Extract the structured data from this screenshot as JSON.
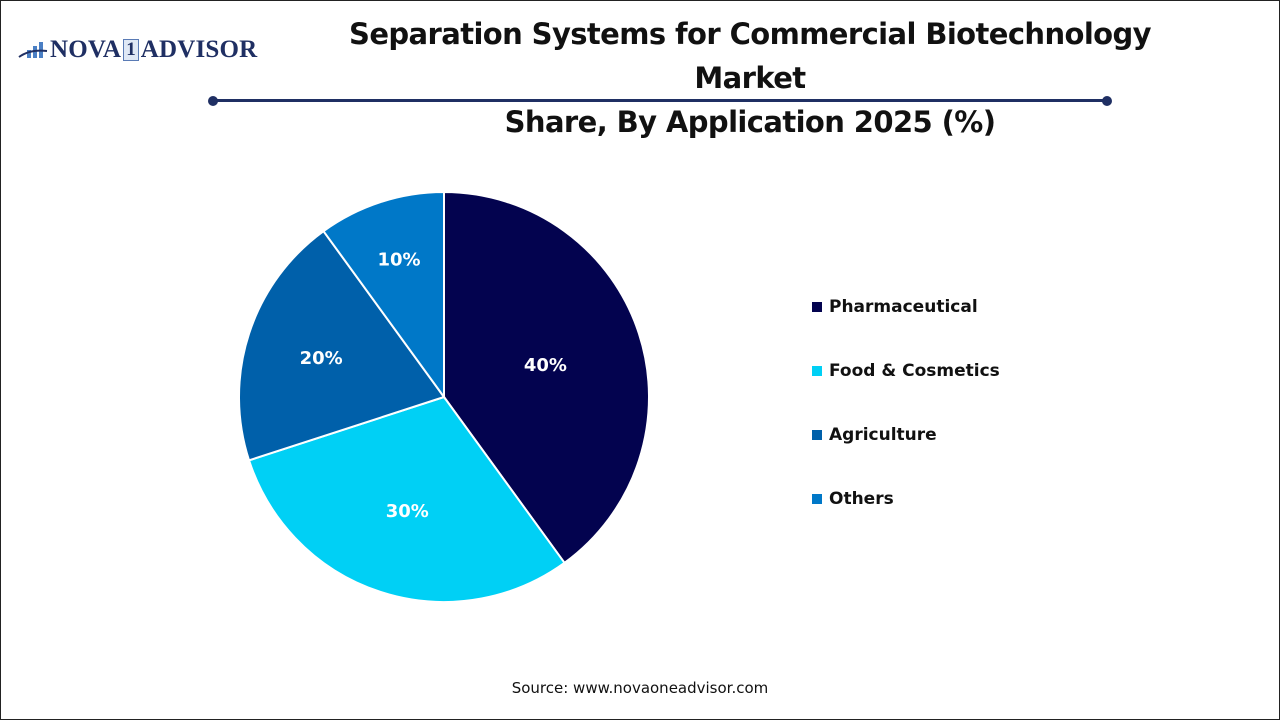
{
  "header": {
    "logo": {
      "left": "NOVA",
      "one": "1",
      "right": "ADVISOR"
    },
    "title_line1": "Separation Systems for Commercial Biotechnology Market",
    "title_line2": "Share, By Application 2025 (%)"
  },
  "footer": {
    "source": "Source: www.novaoneadvisor.com"
  },
  "chart_data": {
    "type": "pie",
    "title": "Separation Systems for Commercial Biotechnology Market Share, By Application 2025 (%)",
    "categories": [
      "Pharmaceutical",
      "Food & Cosmetics",
      "Agriculture",
      "Others"
    ],
    "values": [
      40,
      30,
      20,
      10
    ],
    "labels": [
      "40%",
      "30%",
      "20%",
      "10%"
    ],
    "colors": [
      "#03034f",
      "#00d0f5",
      "#0060aa",
      "#0078c8"
    ],
    "start_angle": "12 o'clock, clockwise",
    "legend_position": "right"
  }
}
